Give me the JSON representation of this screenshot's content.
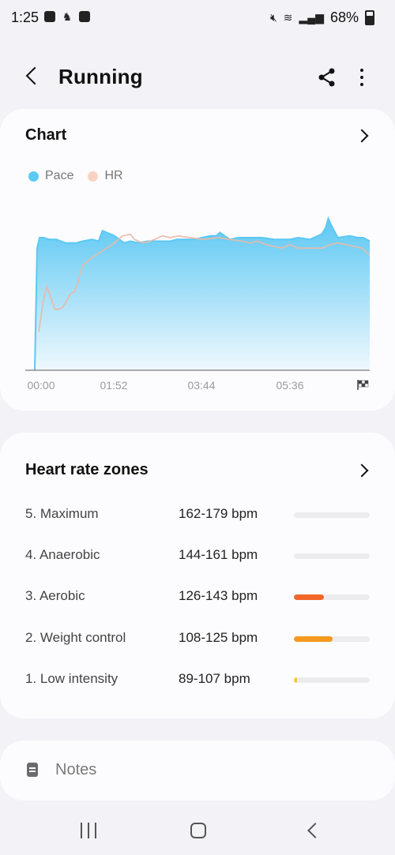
{
  "status_bar": {
    "time": "1:25",
    "battery": "68%",
    "left_icons": [
      "gallery-icon",
      "running-icon",
      "checkbox-icon"
    ],
    "right_icons": [
      "mute-icon",
      "wifi-icon",
      "signal-icon",
      "battery-icon"
    ]
  },
  "header": {
    "title": "Running"
  },
  "chart_card": {
    "title": "Chart",
    "legend": [
      {
        "label": "Pace",
        "color": "#5cc8f3"
      },
      {
        "label": "HR",
        "color": "#f8d3c4"
      }
    ]
  },
  "chart_data": {
    "type": "area",
    "title": "Chart",
    "x_tick_labels": [
      "00:00",
      "01:52",
      "03:44",
      "05:36"
    ],
    "x_end_marker": "finish-flag-icon",
    "xlim": [
      0,
      420
    ],
    "ylim": [
      0,
      100
    ],
    "series": [
      {
        "name": "Pace",
        "style": "area",
        "color": "#5cc8f3",
        "x": [
          0,
          3,
          6,
          11,
          18,
          27,
          38,
          45,
          52,
          60,
          72,
          80,
          85,
          90,
          100,
          112,
          120,
          130,
          142,
          150,
          160,
          170,
          178,
          190,
          200,
          210,
          220,
          228,
          232,
          238,
          245,
          255,
          268,
          285,
          300,
          320,
          330,
          345,
          355,
          360,
          365,
          368,
          372,
          380,
          395,
          405,
          412,
          420
        ],
        "y": [
          0,
          70,
          76,
          76,
          75,
          75,
          73,
          73,
          73,
          74,
          75,
          74,
          80,
          79,
          77,
          73,
          74,
          73,
          74,
          74,
          74,
          74,
          75,
          75,
          75,
          76,
          77,
          77,
          79,
          77,
          75,
          76,
          76,
          76,
          75,
          75,
          76,
          75,
          77,
          78,
          82,
          87,
          83,
          76,
          77,
          76,
          76,
          74
        ]
      },
      {
        "name": "HR",
        "style": "line",
        "color": "#f8d3c4",
        "x": [
          5,
          10,
          15,
          20,
          25,
          30,
          35,
          40,
          45,
          50,
          55,
          60,
          70,
          80,
          90,
          100,
          110,
          120,
          125,
          135,
          145,
          150,
          160,
          170,
          180,
          195,
          210,
          230,
          245,
          260,
          270,
          280,
          290,
          300,
          310,
          320,
          330,
          340,
          350,
          360,
          370,
          380,
          390,
          400,
          410,
          420
        ],
        "y": [
          22,
          38,
          48,
          42,
          35,
          35,
          36,
          40,
          44,
          45,
          52,
          60,
          64,
          67,
          70,
          73,
          77,
          78,
          75,
          73,
          74,
          75,
          77,
          76,
          77,
          76,
          75,
          76,
          75,
          74,
          73,
          74,
          72,
          71,
          70,
          72,
          70,
          70,
          70,
          70,
          72,
          73,
          72,
          71,
          70,
          66
        ]
      }
    ]
  },
  "zones_card": {
    "title": "Heart rate zones",
    "zones": [
      {
        "label": "5. Maximum",
        "range": "162-179 bpm",
        "fraction": 0.0,
        "color": "#e8e8ea"
      },
      {
        "label": "4. Anaerobic",
        "range": "144-161 bpm",
        "fraction": 0.0,
        "color": "#e8e8ea"
      },
      {
        "label": "3. Aerobic",
        "range": "126-143 bpm",
        "fraction": 0.4,
        "color": "#f2662a"
      },
      {
        "label": "2. Weight control",
        "range": "108-125 bpm",
        "fraction": 0.51,
        "color": "#f59a1f"
      },
      {
        "label": "1. Low intensity",
        "range": "89-107 bpm",
        "fraction": 0.04,
        "color": "#f6c732"
      }
    ]
  },
  "notes": {
    "label": "Notes",
    "icon": "notes-icon"
  },
  "nav_bar": {
    "items": [
      "recent-apps-icon",
      "home-icon",
      "back-icon"
    ]
  }
}
